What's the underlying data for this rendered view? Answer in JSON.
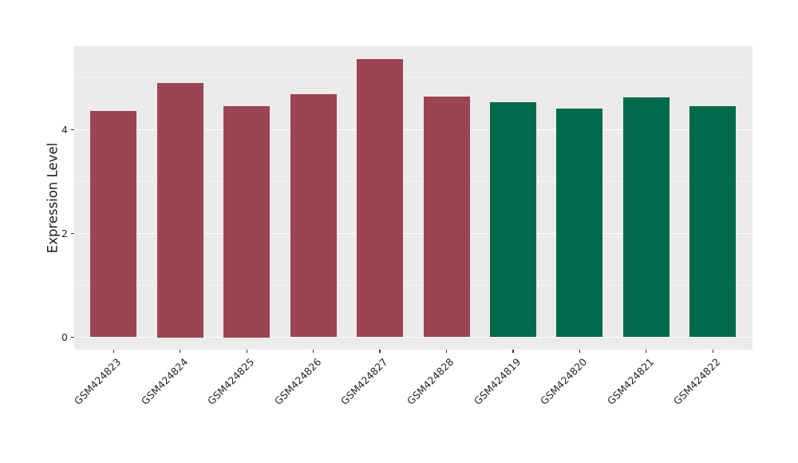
{
  "chart_data": {
    "type": "bar",
    "title": "",
    "xlabel": "",
    "ylabel": "Expression Level",
    "categories": [
      "GSM424823",
      "GSM424824",
      "GSM424825",
      "GSM424826",
      "GSM424827",
      "GSM424828",
      "GSM424819",
      "GSM424820",
      "GSM424821",
      "GSM424822"
    ],
    "values": [
      4.36,
      4.9,
      4.45,
      4.69,
      5.36,
      4.64,
      4.53,
      4.41,
      4.62,
      4.46
    ],
    "bar_colors": [
      "#9D4452",
      "#9D4452",
      "#9D4452",
      "#9D4452",
      "#9D4452",
      "#9D4452",
      "#016A4A",
      "#016A4A",
      "#016A4A",
      "#016A4A"
    ],
    "color_groups": [
      {
        "color": "#9D4452",
        "categories": [
          "GSM424823",
          "GSM424824",
          "GSM424825",
          "GSM424826",
          "GSM424827",
          "GSM424828"
        ]
      },
      {
        "color": "#016A4A",
        "categories": [
          "GSM424819",
          "GSM424820",
          "GSM424821",
          "GSM424822"
        ]
      }
    ],
    "y_major_ticks": [
      0,
      2,
      4
    ],
    "y_minor_ticks": [
      1,
      3,
      5
    ],
    "ylim": [
      -0.24,
      5.61
    ],
    "grid": true,
    "legend_position": "none",
    "panel_background": "#EBEBEB",
    "major_grid_color": "#FFFFFF",
    "minor_grid_color": "#F4F4F4",
    "tick_color": "#333333",
    "label_color": "#262626"
  }
}
